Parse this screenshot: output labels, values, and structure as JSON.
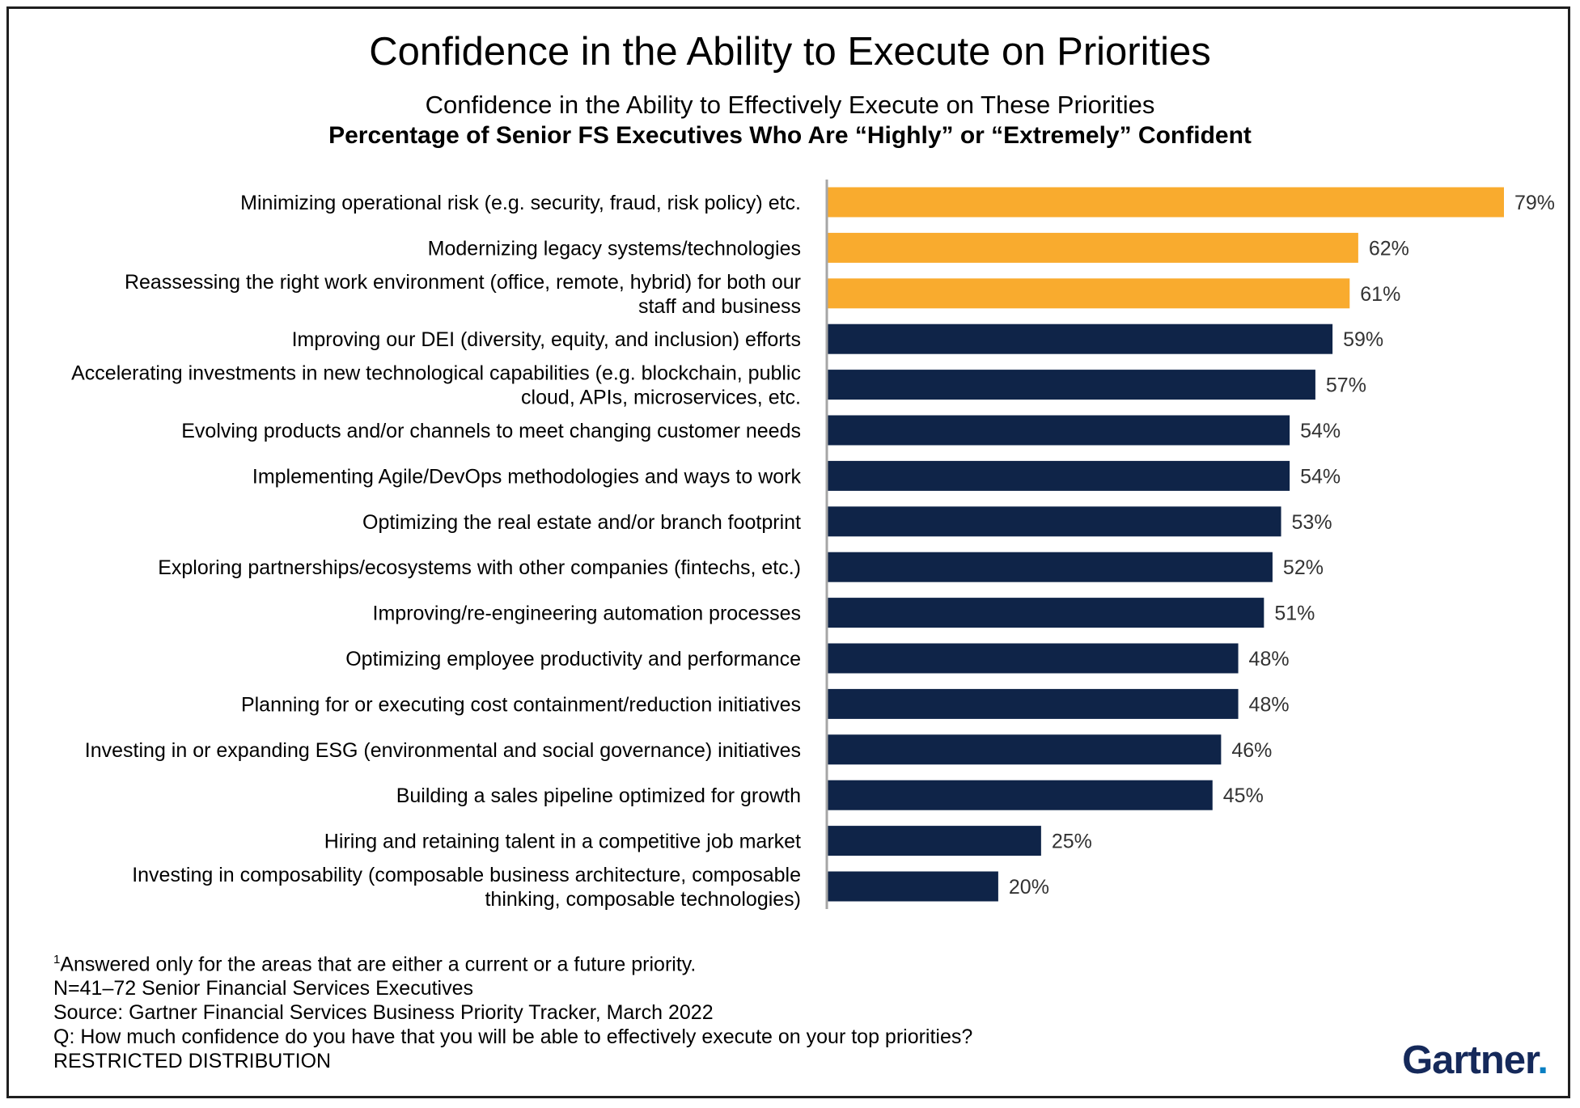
{
  "title": "Confidence in the Ability to Execute on Priorities",
  "subtitle": "Confidence in the Ability to Effectively Execute on These Priorities",
  "subtitle2": "Percentage of Senior FS Executives Who Are “Highly” or “Extremely” Confident",
  "colors": {
    "highlight": "#F9AB2E",
    "primary": "#0F2448",
    "axis": "#A6A6A6"
  },
  "chart_data": {
    "type": "bar",
    "orientation": "horizontal",
    "categories": [
      "Minimizing operational risk (e.g. security, fraud, risk policy) etc.",
      "Modernizing legacy systems/technologies",
      "Reassessing the right work environment (office, remote, hybrid) for both our staff and business",
      "Improving our DEI (diversity, equity, and inclusion) efforts",
      "Accelerating investments in new technological capabilities (e.g. blockchain, public cloud, APIs, microservices, etc.",
      "Evolving products and/or channels to meet changing customer needs",
      "Implementing Agile/DevOps methodologies and ways to work",
      "Optimizing the real estate and/or branch footprint",
      "Exploring partnerships/ecosystems with other companies (fintechs, etc.)",
      "Improving/re-engineering automation processes",
      "Optimizing employee productivity and performance",
      "Planning for or executing cost containment/reduction initiatives",
      "Investing in or expanding ESG (environmental and social governance) initiatives",
      "Building a sales pipeline optimized for growth",
      "Hiring and retaining talent in a competitive job market",
      "Investing in composability (composable business architecture, composable thinking, composable technologies)"
    ],
    "label_lines": [
      [
        "Minimizing operational risk (e.g. security, fraud, risk policy) etc."
      ],
      [
        "Modernizing legacy systems/technologies"
      ],
      [
        "Reassessing the right work environment (office, remote, hybrid) for both our",
        "staff and business"
      ],
      [
        "Improving our DEI (diversity, equity, and inclusion) efforts"
      ],
      [
        "Accelerating investments in new technological capabilities (e.g. blockchain, public",
        "cloud, APIs, microservices, etc."
      ],
      [
        "Evolving products and/or channels to meet changing customer needs"
      ],
      [
        "Implementing Agile/DevOps methodologies and ways to work"
      ],
      [
        "Optimizing the real estate and/or branch footprint"
      ],
      [
        "Exploring partnerships/ecosystems with other companies (fintechs, etc.)"
      ],
      [
        "Improving/re-engineering automation processes"
      ],
      [
        "Optimizing employee productivity and performance"
      ],
      [
        "Planning for or executing cost containment/reduction initiatives"
      ],
      [
        "Investing in or expanding ESG (environmental and social governance) initiatives"
      ],
      [
        "Building a sales pipeline optimized for growth"
      ],
      [
        "Hiring and retaining talent in a competitive job market"
      ],
      [
        "Investing in composability (composable business architecture, composable",
        "thinking, composable technologies)"
      ]
    ],
    "values": [
      79,
      62,
      61,
      59,
      57,
      54,
      54,
      53,
      52,
      51,
      48,
      48,
      46,
      45,
      25,
      20
    ],
    "value_labels": [
      "79%",
      "62%",
      "61%",
      "59%",
      "57%",
      "54%",
      "54%",
      "53%",
      "52%",
      "51%",
      "48%",
      "48%",
      "46%",
      "45%",
      "25%",
      "20%"
    ],
    "highlighted": [
      true,
      true,
      true,
      false,
      false,
      false,
      false,
      false,
      false,
      false,
      false,
      false,
      false,
      false,
      false,
      false
    ],
    "unit": "%",
    "xlim": [
      0,
      100
    ],
    "grid": false,
    "legend": "none"
  },
  "footnotes": {
    "line1_sup": "1",
    "line1": "Answered only for the areas that are either a current or a future priority.",
    "line2": "N=41–72 Senior Financial Services Executives",
    "line3": "Source: Gartner Financial Services Business Priority Tracker, March 2022",
    "line4": "Q: How much confidence do you have that you will be able to effectively execute on your top priorities?",
    "line5": "RESTRICTED DISTRIBUTION"
  },
  "logo": {
    "text": "Gartner",
    "mark": "."
  }
}
